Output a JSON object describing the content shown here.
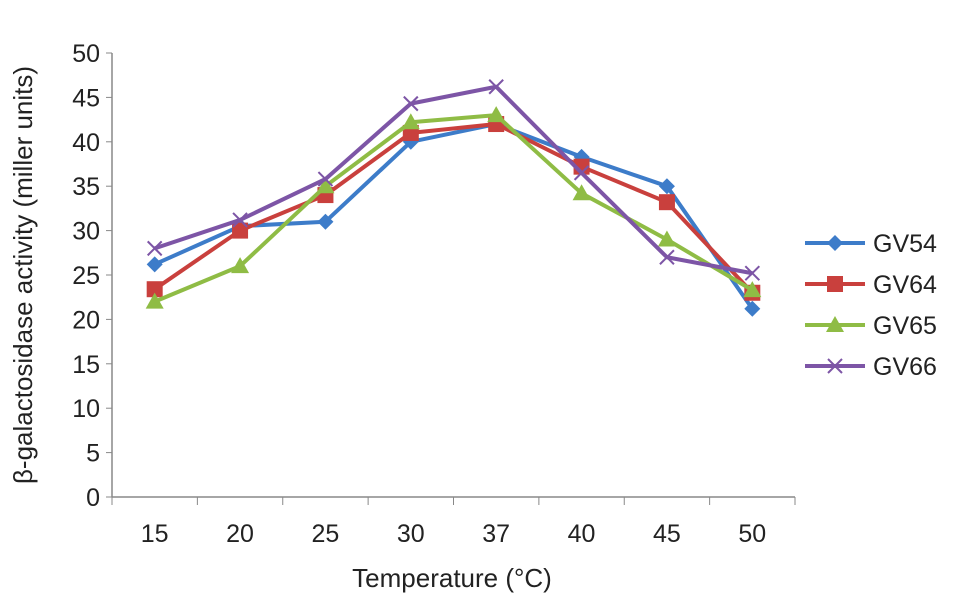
{
  "chart_data": {
    "type": "line",
    "title": "",
    "xlabel": "Temperature (°C)",
    "ylabel": "β-galactosidase activity (miller units)",
    "categories": [
      "15",
      "20",
      "25",
      "30",
      "37",
      "40",
      "45",
      "50"
    ],
    "ylim": [
      0,
      50
    ],
    "yticks": [
      0,
      5,
      10,
      15,
      20,
      25,
      30,
      35,
      40,
      45,
      50
    ],
    "ytick_labels": [
      "0",
      "5",
      "10",
      "15",
      "20",
      "25",
      "30",
      "35",
      "40",
      "45",
      "50"
    ],
    "grid": false,
    "legend_position": "right",
    "series": [
      {
        "name": "GV54",
        "color": "#3d7cc9",
        "marker": "diamond",
        "values": [
          26.2,
          30.5,
          31,
          40,
          42,
          38.3,
          35,
          21.2
        ]
      },
      {
        "name": "GV64",
        "color": "#c9403d",
        "marker": "square",
        "values": [
          23.4,
          30,
          34,
          41,
          42,
          37.2,
          33.2,
          23
        ]
      },
      {
        "name": "GV65",
        "color": "#8fbc45",
        "marker": "triangle",
        "values": [
          22,
          26,
          35,
          42.2,
          43,
          34.2,
          29,
          23.3
        ]
      },
      {
        "name": "GV66",
        "color": "#7d55a6",
        "marker": "x",
        "values": [
          28,
          31.2,
          35.8,
          44.3,
          46.2,
          36.5,
          27,
          25.2
        ]
      }
    ]
  }
}
